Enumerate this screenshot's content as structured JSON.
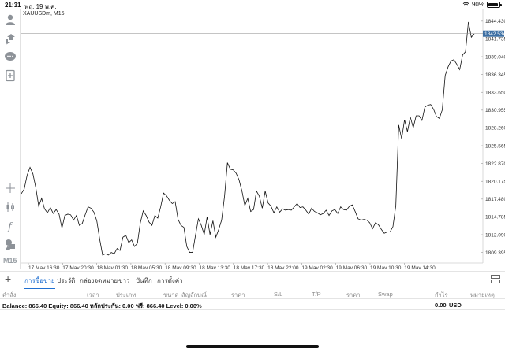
{
  "status_bar": {
    "time": "21:31",
    "date": "พฤ. 19 พ.ค.",
    "battery": "90%",
    "battery_level": 0.9
  },
  "chart": {
    "symbol": "XAUUSDm, M15",
    "current_price": "1842.534",
    "current_price_value": 1842.534,
    "timeframe": "M15",
    "line_color": "#111111",
    "price_tag_color": "#3d6fa3"
  },
  "left_toolbar": {
    "icons": [
      "account-icon",
      "trade-icon",
      "chat-icon",
      "new-document-icon",
      "crosshair-icon",
      "candles-icon",
      "indicators-icon",
      "objects-icon"
    ]
  },
  "chart_data": {
    "type": "line",
    "title": "",
    "xlabel": "",
    "ylabel": "",
    "x_tick_labels": [
      "17 May 16:30",
      "17 May 20:30",
      "18 May 01:30",
      "18 May 05:30",
      "18 May 09:30",
      "18 May 13:30",
      "18 May 17:30",
      "18 May 22:00",
      "19 May 02:30",
      "19 May 06:30",
      "19 May 10:30",
      "19 May 14:30"
    ],
    "y_tick_labels": [
      "1844.430",
      "1841.735",
      "1839.040",
      "1836.345",
      "1833.650",
      "1830.955",
      "1828.260",
      "1825.565",
      "1822.870",
      "1820.175",
      "1817.480",
      "1814.785",
      "1812.090",
      "1809.395"
    ],
    "ylim": [
      1807.8,
      1846.2
    ],
    "grid": false,
    "current_value": 1842.534,
    "series": [
      {
        "values": [
          1818.3,
          1819.0,
          1821.1,
          1822.3,
          1821.3,
          1819.2,
          1816.4,
          1817.6,
          1816.0,
          1815.4,
          1816.2,
          1815.3,
          1815.9,
          1815.2,
          1813.1,
          1815.0,
          1815.2,
          1815.1,
          1814.3,
          1815.0,
          1813.5,
          1813.8,
          1815.1,
          1816.3,
          1816.1,
          1815.5,
          1814.2,
          1811.4,
          1809.0,
          1809.2,
          1809.0,
          1809.4,
          1809.2,
          1810.0,
          1809.7,
          1811.7,
          1812.0,
          1810.9,
          1811.3,
          1810.3,
          1810.8,
          1813.9,
          1815.7,
          1815.0,
          1814.0,
          1813.5,
          1815.0,
          1814.6,
          1816.3,
          1818.4,
          1818.0,
          1817.3,
          1816.8,
          1817.1,
          1814.4,
          1813.5,
          1813.2,
          1810.3,
          1809.4,
          1809.4,
          1812.0,
          1814.5,
          1813.5,
          1812.1,
          1814.8,
          1812.1,
          1814.2,
          1811.7,
          1812.9,
          1814.3,
          1817.9,
          1823.0,
          1822.0,
          1821.9,
          1821.4,
          1820.4,
          1818.7,
          1816.5,
          1817.6,
          1815.6,
          1815.9,
          1818.7,
          1817.9,
          1816.1,
          1818.7,
          1816.9,
          1816.4,
          1815.4,
          1816.3,
          1815.5,
          1816.0,
          1815.8,
          1815.9,
          1815.8,
          1816.3,
          1816.8,
          1816.2,
          1816.3,
          1815.8,
          1815.2,
          1816.1,
          1815.6,
          1815.4,
          1815.1,
          1815.3,
          1815.8,
          1815.0,
          1815.7,
          1815.9,
          1815.3,
          1816.3,
          1815.9,
          1815.8,
          1816.4,
          1816.6,
          1815.6,
          1814.5,
          1814.3,
          1814.4,
          1814.3,
          1813.9,
          1813.0,
          1813.9,
          1813.6,
          1812.9,
          1812.3,
          1812.5,
          1812.5,
          1813.3,
          1816.5,
          1828.7,
          1826.6,
          1829.5,
          1827.7,
          1829.9,
          1828.3,
          1830.1,
          1830.1,
          1829.4,
          1831.4,
          1831.7,
          1831.8,
          1831.1,
          1830.0,
          1829.7,
          1831.0,
          1836.2,
          1837.5,
          1838.4,
          1838.6,
          1837.9,
          1837.1,
          1839.3,
          1839.8,
          1844.3,
          1842.0,
          1842.5
        ]
      }
    ]
  },
  "tabs": [
    {
      "label": "การซื้อขาย",
      "active": true
    },
    {
      "label": "ประวัติ",
      "active": false
    },
    {
      "label": "กล่องจดหมาย",
      "active": false
    },
    {
      "label": "ข่าว",
      "active": false
    },
    {
      "label": "บันทึก",
      "active": false
    },
    {
      "label": "การตั้งค่า",
      "active": false
    }
  ],
  "columns": [
    "คำสั่ง",
    "เวลา",
    "ประเภท",
    "ขนาด",
    "สัญลักษณ์",
    "ราคา",
    "S/L",
    "T/P",
    "ราคา",
    "Swap",
    "กำไร",
    "หมายเหตุ"
  ],
  "balance": {
    "text": "Balance: 866.40 Equity: 866.40 หลักประกัน: 0.00 ฟรี: 866.40 Level: 0.00%",
    "amount": "0.00",
    "currency": "USD"
  }
}
